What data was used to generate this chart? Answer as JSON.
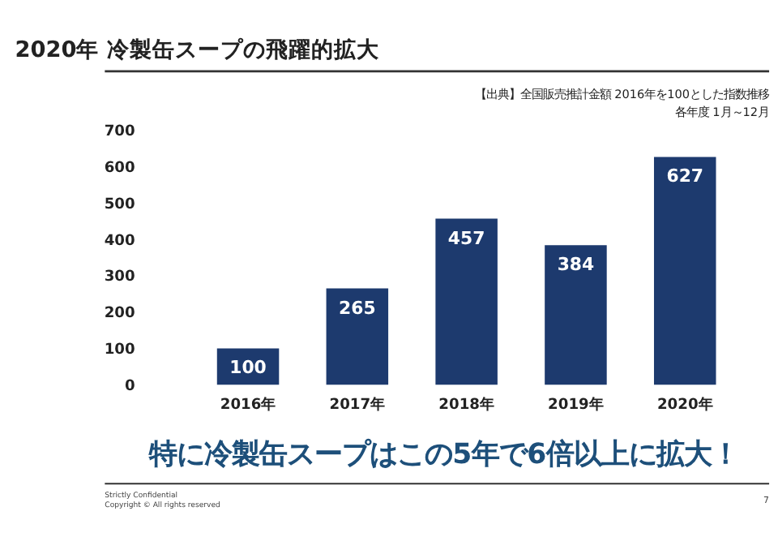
{
  "chart_data": {
    "type": "bar",
    "title": "2020年  冷製缶スープの飛躍的拡大",
    "categories": [
      "2016年",
      "2017年",
      "2018年",
      "2019年",
      "2020年"
    ],
    "values": [
      100,
      265,
      457,
      384,
      627
    ],
    "color": "#1d3a6e",
    "ylim": [
      0,
      700
    ],
    "yticks": [
      0,
      100,
      200,
      300,
      400,
      500,
      600,
      700
    ],
    "grid": false,
    "data_labels": true,
    "annotations": [
      "【出典】全国販売推計金額 2016年を100とした指数推移",
      "各年度 1月～12月",
      "特に冷製缶スープはこの5年で6倍以上に拡大！",
      "Strictly Confidential",
      "Copyright © All rights reserved",
      "7"
    ]
  }
}
